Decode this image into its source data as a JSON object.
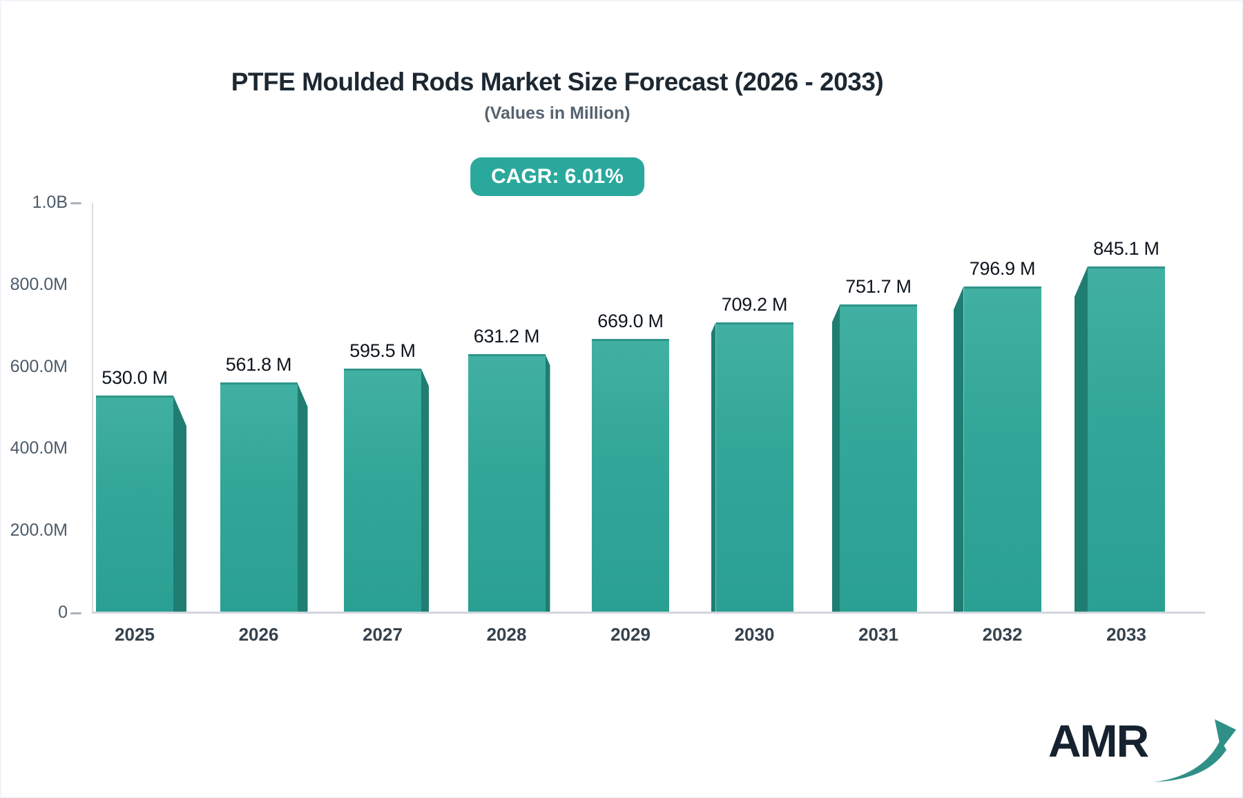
{
  "chart_data": {
    "type": "bar",
    "title": "PTFE Moulded Rods Market Size Forecast (2026 - 2033)",
    "subtitle": "(Values in Million)",
    "annotation": "CAGR: 6.01%",
    "categories": [
      "2025",
      "2026",
      "2027",
      "2028",
      "2029",
      "2030",
      "2031",
      "2032",
      "2033"
    ],
    "values": [
      530.0,
      561.8,
      595.5,
      631.2,
      669.0,
      709.2,
      751.7,
      796.9,
      845.1
    ],
    "value_labels": [
      "530.0 M",
      "561.8 M",
      "595.5 M",
      "631.2 M",
      "669.0 M",
      "709.2 M",
      "751.7 M",
      "796.9 M",
      "845.1 M"
    ],
    "ylim": [
      0,
      1000
    ],
    "yticks": [
      {
        "label": "1.0B",
        "value": 1000,
        "dash": true
      },
      {
        "label": "800.0M",
        "value": 800,
        "dash": false
      },
      {
        "label": "600.0M",
        "value": 600,
        "dash": false
      },
      {
        "label": "400.0M",
        "value": 400,
        "dash": false
      },
      {
        "label": "200.0M",
        "value": 200,
        "dash": false
      },
      {
        "label": "0",
        "value": 0,
        "dash": true
      }
    ],
    "grid": false,
    "legend": false,
    "colors": {
      "bar_face": "#35a99b",
      "bar_side": "#1f7d72",
      "accent": "#2aa89c",
      "title_text": "#1c2731",
      "axis_line": "#d2d5dc"
    }
  },
  "branding": {
    "logo_text": "AMR"
  }
}
